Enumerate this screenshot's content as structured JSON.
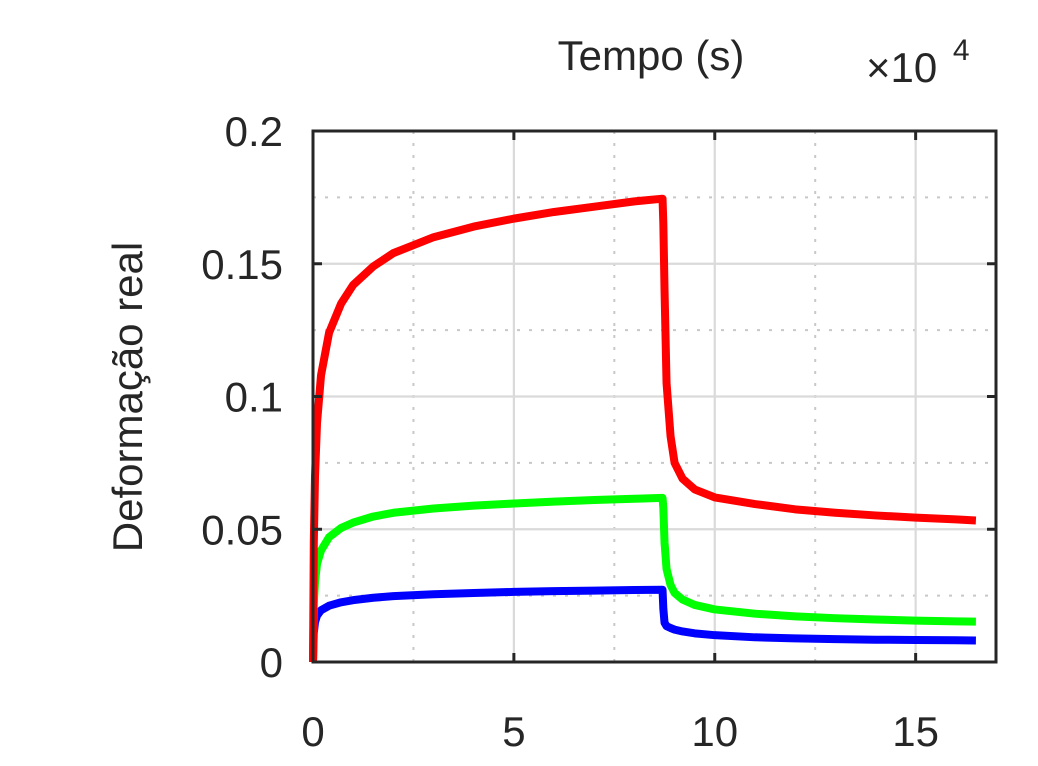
{
  "chart_data": {
    "type": "line",
    "title": "",
    "xlabel": "Tempo (s)",
    "ylabel": "Deformação real",
    "x_multiplier": {
      "prefix": "×10",
      "exponent": "4"
    },
    "xlim": [
      0,
      17
    ],
    "ylim": [
      0,
      0.2
    ],
    "xticks": [
      0,
      5,
      10,
      15
    ],
    "xtick_labels": [
      "0",
      "5",
      "10",
      "15"
    ],
    "xminor_grid": [
      2.5,
      7.5,
      12.5
    ],
    "yticks": [
      0,
      0.05,
      0.1,
      0.15,
      0.2
    ],
    "ytick_labels": [
      "0",
      "0.05",
      "0.1",
      "0.15",
      "0.2"
    ],
    "yminor_grid": [
      0.025,
      0.075,
      0.125,
      0.175
    ],
    "grid": true,
    "xaxis_location": "top",
    "unload_time": 8.7,
    "series": [
      {
        "color": "#ff0000",
        "x": [
          0,
          0.02,
          0.05,
          0.1,
          0.2,
          0.4,
          0.7,
          1.0,
          1.5,
          2.0,
          2.5,
          3.0,
          4.0,
          5.0,
          6.0,
          7.0,
          8.0,
          8.7,
          8.72,
          8.75,
          8.8,
          8.9,
          9.0,
          9.2,
          9.5,
          10.0,
          11.0,
          12.0,
          13.0,
          14.0,
          15.0,
          16.0,
          16.5
        ],
        "y": [
          0,
          0.045,
          0.07,
          0.09,
          0.108,
          0.124,
          0.135,
          0.142,
          0.149,
          0.154,
          0.157,
          0.16,
          0.164,
          0.167,
          0.1695,
          0.1715,
          0.1735,
          0.1745,
          0.165,
          0.14,
          0.105,
          0.085,
          0.075,
          0.069,
          0.065,
          0.062,
          0.0595,
          0.0575,
          0.0562,
          0.0552,
          0.0544,
          0.0537,
          0.0533
        ]
      },
      {
        "color": "#00ff00",
        "x": [
          0,
          0.02,
          0.05,
          0.1,
          0.2,
          0.4,
          0.7,
          1.0,
          1.5,
          2.0,
          3.0,
          4.0,
          5.0,
          6.0,
          7.0,
          8.0,
          8.7,
          8.72,
          8.75,
          8.8,
          8.9,
          9.0,
          9.2,
          9.5,
          10.0,
          11.0,
          12.0,
          13.0,
          14.0,
          15.0,
          16.0,
          16.5
        ],
        "y": [
          0,
          0.022,
          0.03,
          0.037,
          0.042,
          0.047,
          0.0505,
          0.0525,
          0.0548,
          0.0562,
          0.0578,
          0.0589,
          0.0597,
          0.0604,
          0.061,
          0.0615,
          0.0618,
          0.058,
          0.045,
          0.035,
          0.029,
          0.026,
          0.0235,
          0.0215,
          0.0198,
          0.0182,
          0.0172,
          0.0165,
          0.016,
          0.0156,
          0.0153,
          0.0152
        ]
      },
      {
        "color": "#0000ff",
        "x": [
          0,
          0.02,
          0.05,
          0.1,
          0.2,
          0.4,
          0.7,
          1.0,
          1.5,
          2.0,
          3.0,
          4.0,
          5.0,
          6.0,
          7.0,
          8.0,
          8.7,
          8.72,
          8.75,
          8.8,
          8.9,
          9.0,
          9.2,
          9.5,
          10.0,
          11.0,
          12.0,
          13.0,
          14.0,
          15.0,
          16.0,
          16.5
        ],
        "y": [
          0,
          0.011,
          0.015,
          0.0175,
          0.0195,
          0.0212,
          0.0225,
          0.0233,
          0.0242,
          0.0248,
          0.0255,
          0.026,
          0.0264,
          0.0267,
          0.0269,
          0.0271,
          0.0272,
          0.02,
          0.0148,
          0.0135,
          0.0128,
          0.0122,
          0.0115,
          0.0108,
          0.0101,
          0.0093,
          0.0089,
          0.0086,
          0.0084,
          0.0083,
          0.0082,
          0.0081
        ]
      }
    ]
  }
}
